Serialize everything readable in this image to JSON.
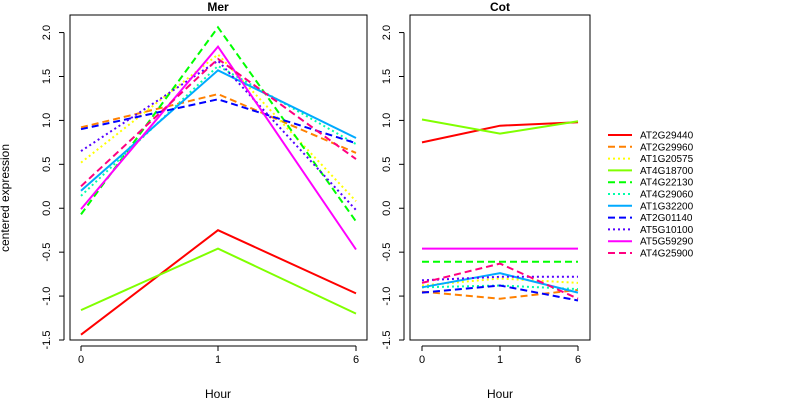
{
  "chart_data": {
    "type": "line",
    "ylabel": "centered expression",
    "xlabel": "Hour",
    "x": [
      "0",
      "1",
      "6"
    ],
    "ylim": [
      -1.5,
      2.2
    ],
    "yticks": [
      "-1.5",
      "-1.0",
      "-0.5",
      "0.0",
      "0.5",
      "1.0",
      "1.5",
      "2.0"
    ],
    "panels": [
      {
        "title": "Mer",
        "series": [
          {
            "name": "AT2G29440",
            "color": "#FF0000",
            "dash": "solid",
            "values": [
              -1.44,
              -0.25,
              -0.97
            ]
          },
          {
            "name": "AT2G29960",
            "color": "#FF8000",
            "dash": "dashed",
            "values": [
              0.92,
              1.3,
              0.63
            ]
          },
          {
            "name": "AT1G20575",
            "color": "#FFFF00",
            "dash": "dotted",
            "values": [
              0.52,
              1.75,
              0.08
            ]
          },
          {
            "name": "AT4G18700",
            "color": "#80FF00",
            "dash": "solid",
            "values": [
              -1.16,
              -0.46,
              -1.2
            ]
          },
          {
            "name": "AT4G22130",
            "color": "#00FF00",
            "dash": "dashed",
            "values": [
              -0.07,
              2.06,
              -0.15
            ]
          },
          {
            "name": "AT4G29060",
            "color": "#00FFAA",
            "dash": "dotted",
            "values": [
              0.14,
              1.62,
              0.73
            ]
          },
          {
            "name": "AT1G32200",
            "color": "#00AAFF",
            "dash": "solid",
            "values": [
              0.2,
              1.57,
              0.8
            ]
          },
          {
            "name": "AT2G01140",
            "color": "#0000FF",
            "dash": "dashed",
            "values": [
              0.9,
              1.24,
              0.74
            ]
          },
          {
            "name": "AT5G10100",
            "color": "#5500FF",
            "dash": "dotted",
            "values": [
              0.65,
              1.68,
              -0.02
            ]
          },
          {
            "name": "AT5G59290",
            "color": "#FF00FF",
            "dash": "solid",
            "values": [
              -0.01,
              1.84,
              -0.47
            ]
          },
          {
            "name": "AT4G25900",
            "color": "#FF0080",
            "dash": "dashed",
            "values": [
              0.25,
              1.7,
              0.56
            ]
          }
        ]
      },
      {
        "title": "Cot",
        "series": [
          {
            "name": "AT2G29440",
            "color": "#FF0000",
            "dash": "solid",
            "values": [
              0.75,
              0.94,
              0.98
            ]
          },
          {
            "name": "AT2G29960",
            "color": "#FF8000",
            "dash": "dashed",
            "values": [
              -0.95,
              -1.03,
              -0.93
            ]
          },
          {
            "name": "AT1G20575",
            "color": "#FFFF00",
            "dash": "dotted",
            "values": [
              -0.88,
              -0.8,
              -0.85
            ]
          },
          {
            "name": "AT4G18700",
            "color": "#80FF00",
            "dash": "solid",
            "values": [
              1.01,
              0.85,
              0.99
            ]
          },
          {
            "name": "AT4G22130",
            "color": "#00FF00",
            "dash": "dashed",
            "values": [
              -0.61,
              -0.61,
              -0.61
            ]
          },
          {
            "name": "AT4G29060",
            "color": "#00FFAA",
            "dash": "dotted",
            "values": [
              -0.9,
              -0.88,
              -0.92
            ]
          },
          {
            "name": "AT1G32200",
            "color": "#00AAFF",
            "dash": "solid",
            "values": [
              -0.9,
              -0.74,
              -0.96
            ]
          },
          {
            "name": "AT2G01140",
            "color": "#0000FF",
            "dash": "dashed",
            "values": [
              -0.96,
              -0.88,
              -1.05
            ]
          },
          {
            "name": "AT5G10100",
            "color": "#5500FF",
            "dash": "dotted",
            "values": [
              -0.82,
              -0.78,
              -0.78
            ]
          },
          {
            "name": "AT5G59290",
            "color": "#FF00FF",
            "dash": "solid",
            "values": [
              -0.46,
              -0.46,
              -0.46
            ]
          },
          {
            "name": "AT4G25900",
            "color": "#FF0080",
            "dash": "dashed",
            "values": [
              -0.85,
              -0.63,
              -1.03
            ]
          }
        ]
      }
    ],
    "legend": {
      "position": "right",
      "entries": [
        "AT2G29440",
        "AT2G29960",
        "AT1G20575",
        "AT4G18700",
        "AT4G22130",
        "AT4G29060",
        "AT1G32200",
        "AT2G01140",
        "AT5G10100",
        "AT5G59290",
        "AT4G25900"
      ]
    }
  }
}
